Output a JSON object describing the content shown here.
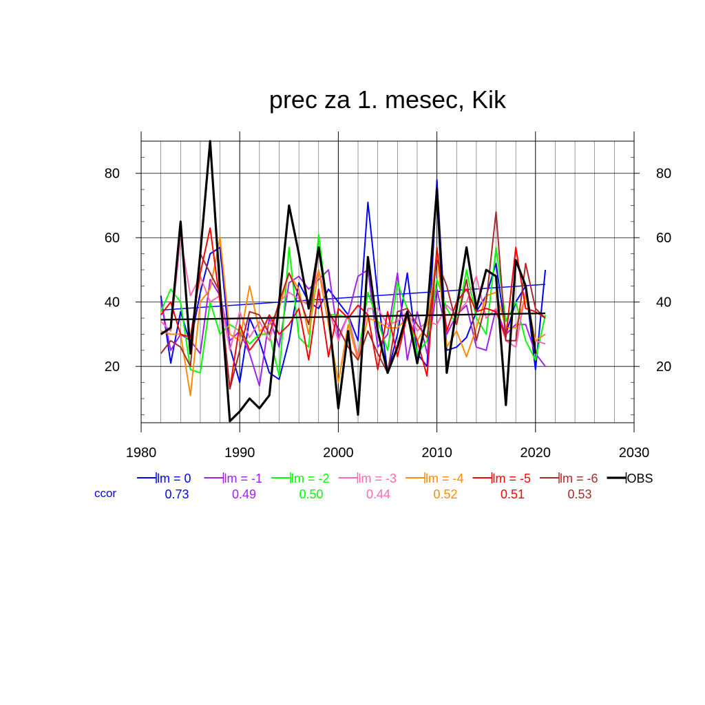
{
  "chart_data": {
    "type": "line",
    "title": "prec za 1. mesec, Kik",
    "xlim": [
      1980,
      2030
    ],
    "ylim": [
      2.5,
      90
    ],
    "x_ticks": [
      "1980",
      "1990",
      "2000",
      "2010",
      "2020",
      "2030"
    ],
    "y_ticks": [
      "20",
      "40",
      "60",
      "80"
    ],
    "x": [
      1982,
      1983,
      1984,
      1985,
      1986,
      1987,
      1988,
      1989,
      1990,
      1991,
      1992,
      1993,
      1994,
      1995,
      1996,
      1997,
      1998,
      1999,
      2000,
      2001,
      2002,
      2003,
      2004,
      2005,
      2006,
      2007,
      2008,
      2009,
      2010,
      2011,
      2012,
      2013,
      2014,
      2015,
      2016,
      2017,
      2018,
      2019,
      2020,
      2021
    ],
    "ccor_label": "ccor",
    "series": [
      {
        "name": "lm = 0",
        "color": "#0000ff",
        "ccor": "0.73",
        "width": 2,
        "values": [
          42,
          21,
          37,
          27,
          43,
          55,
          57,
          26,
          15,
          35,
          28,
          18,
          16,
          28,
          46,
          40,
          38,
          44,
          40,
          36,
          28,
          71,
          42,
          18,
          30,
          49,
          24,
          20,
          78,
          25,
          26,
          29,
          37,
          42,
          52,
          30,
          40,
          45,
          19,
          50
        ],
        "trend": [
          37.5,
          45.5
        ]
      },
      {
        "name": "lm = -1",
        "color": "#a020f0",
        "ccor": "0.49",
        "width": 2,
        "values": [
          40,
          25,
          30,
          28,
          24,
          47,
          42,
          28,
          31,
          24,
          14,
          35,
          26,
          46,
          48,
          44,
          47,
          50,
          29,
          36,
          48,
          50,
          26,
          30,
          49,
          22,
          37,
          24,
          44,
          30,
          36,
          39,
          26,
          25,
          38,
          30,
          33,
          33,
          24,
          20
        ]
      },
      {
        "name": "lm = -2",
        "color": "#00ff00",
        "ccor": "0.50",
        "width": 2,
        "values": [
          37,
          44,
          40,
          19,
          18,
          40,
          30,
          33,
          31,
          27,
          30,
          30,
          17,
          57,
          29,
          26,
          61,
          36,
          36,
          35,
          23,
          43,
          34,
          25,
          46,
          38,
          24,
          28,
          47,
          38,
          33,
          50,
          35,
          30,
          57,
          34,
          40,
          28,
          22,
          36
        ]
      },
      {
        "name": "lm = -3",
        "color": "#ff69b4",
        "ccor": "0.44",
        "width": 2,
        "values": [
          34,
          31,
          60,
          42,
          48,
          40,
          42,
          25,
          37,
          29,
          34,
          28,
          40,
          43,
          41,
          39,
          50,
          38,
          28,
          36,
          23,
          38,
          38,
          33,
          34,
          37,
          31,
          34,
          33,
          39,
          36,
          40,
          48,
          35,
          38,
          28,
          26,
          43,
          28,
          27
        ]
      },
      {
        "name": "lm = -4",
        "color": "#ff8c00",
        "ccor": "0.52",
        "width": 2,
        "values": [
          31,
          30,
          30,
          11,
          40,
          44,
          60,
          30,
          28,
          45,
          31,
          33,
          38,
          49,
          44,
          30,
          50,
          33,
          15,
          33,
          22,
          35,
          34,
          32,
          32,
          35,
          28,
          33,
          55,
          26,
          31,
          23,
          32,
          42,
          43,
          32,
          32,
          42,
          28,
          30
        ]
      },
      {
        "name": "lm = -5",
        "color": "#ff0000",
        "ccor": "0.51",
        "width": 2,
        "values": [
          36,
          40,
          30,
          29,
          49,
          63,
          40,
          13,
          33,
          25,
          29,
          36,
          30,
          33,
          38,
          22,
          44,
          23,
          38,
          35,
          39,
          36,
          19,
          37,
          23,
          36,
          28,
          17,
          57,
          31,
          40,
          44,
          37,
          38,
          37,
          29,
          57,
          38,
          37,
          35
        ]
      },
      {
        "name": "lm = -6",
        "color": "#a52a2a",
        "ccor": "0.53",
        "width": 2,
        "values": [
          24,
          28,
          26,
          20,
          55,
          49,
          43,
          13,
          25,
          37,
          36,
          30,
          40,
          49,
          42,
          33,
          56,
          37,
          32,
          26,
          22,
          31,
          24,
          18,
          37,
          38,
          33,
          29,
          53,
          45,
          33,
          47,
          28,
          40,
          68,
          28,
          28,
          52,
          38,
          35
        ]
      },
      {
        "name": "OBS",
        "color": "#000000",
        "ccor": "",
        "width": 3.2,
        "values": [
          30,
          32,
          65,
          24,
          55,
          90,
          44,
          3,
          6,
          10,
          7,
          11,
          40,
          70,
          55,
          38,
          57,
          37,
          7,
          31,
          5,
          54,
          31,
          18,
          26,
          37,
          21,
          36,
          75,
          18,
          38,
          57,
          38,
          50,
          48,
          8,
          53,
          45,
          24,
          null
        ],
        "trend": [
          34.5,
          36.5
        ]
      }
    ]
  }
}
